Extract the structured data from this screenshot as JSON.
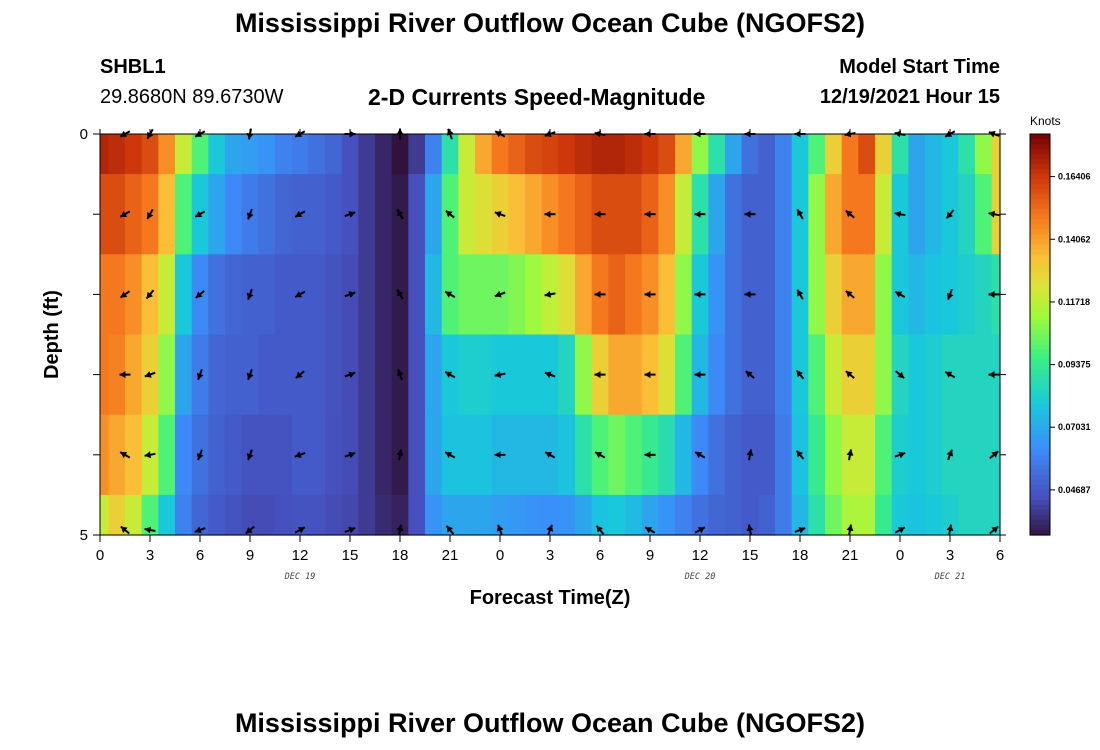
{
  "page": {
    "title": "Mississippi River Outflow Ocean Cube (NGOFS2)",
    "title_repeat": "Mississippi River Outflow Ocean Cube (NGOFS2)",
    "station_id": "SHBL1",
    "station_coords": "29.8680N  89.6730W",
    "subtitle": "2-D Currents Speed-Magnitude",
    "model_start_label": "Model Start Time",
    "model_start_value": "12/19/2021 Hour 15"
  },
  "chart_data": {
    "type": "heatmap",
    "title": "2-D Currents Speed-Magnitude",
    "xlabel": "Forecast Time(Z)",
    "ylabel": "Depth (ft)",
    "x_range_hours": [
      0,
      54
    ],
    "x_tick_hours": [
      0,
      3,
      6,
      9,
      12,
      15,
      18,
      21,
      24,
      27,
      30,
      33,
      36,
      39,
      42,
      45,
      48,
      51,
      54
    ],
    "x_tick_labels": [
      "0",
      "3",
      "6",
      "9",
      "12",
      "15",
      "18",
      "21",
      "0",
      "3",
      "6",
      "9",
      "12",
      "15",
      "18",
      "21",
      "0",
      "3",
      "6"
    ],
    "date_labels": [
      {
        "text": "DEC 19",
        "hour": 12
      },
      {
        "text": "DEC 20",
        "hour": 36
      },
      {
        "text": "DEC 21",
        "hour": 51
      }
    ],
    "y_range_ft": [
      0,
      5
    ],
    "y_tick_labels": [
      {
        "value": 0,
        "label": "0"
      },
      {
        "value": 5,
        "label": "5"
      }
    ],
    "colorbar": {
      "unit": "Knots",
      "min": 0.03,
      "max": 0.18,
      "tick_values": [
        0.16406,
        0.14062,
        0.11718,
        0.09375,
        0.07031,
        0.04687
      ],
      "tick_labels": [
        "0.16406",
        "0.14062",
        "0.11718",
        "0.09375",
        "0.07031",
        "0.04687"
      ]
    },
    "layer_depths_ft": [
      0.25,
      1.0,
      2.0,
      3.0,
      4.0,
      4.75
    ],
    "column_hours": [
      0,
      1,
      2,
      3,
      4,
      5,
      6,
      7,
      8,
      9,
      10,
      11,
      12,
      13,
      14,
      15,
      16,
      17,
      18,
      19,
      20,
      21,
      22,
      23,
      24,
      25,
      26,
      27,
      28,
      29,
      30,
      31,
      32,
      33,
      34,
      35,
      36,
      37,
      38,
      39,
      40,
      41,
      42,
      43,
      44,
      45,
      46,
      47,
      48,
      49,
      50,
      51,
      52,
      53,
      54
    ],
    "speed_knots": [
      [
        0.17,
        0.168,
        0.165,
        0.16,
        0.145,
        0.12,
        0.1,
        0.08,
        0.07,
        0.068,
        0.065,
        0.06,
        0.058,
        0.055,
        0.052,
        0.045,
        0.04,
        0.035,
        0.03,
        0.04,
        0.06,
        0.09,
        0.12,
        0.14,
        0.15,
        0.155,
        0.16,
        0.162,
        0.165,
        0.168,
        0.17,
        0.17,
        0.168,
        0.165,
        0.16,
        0.14,
        0.11,
        0.09,
        0.07,
        0.055,
        0.05,
        0.06,
        0.08,
        0.1,
        0.13,
        0.15,
        0.16,
        0.13,
        0.09,
        0.07,
        0.075,
        0.08,
        0.09,
        0.11,
        0.13
      ],
      [
        0.16,
        0.16,
        0.155,
        0.15,
        0.135,
        0.1,
        0.08,
        0.07,
        0.062,
        0.058,
        0.055,
        0.052,
        0.05,
        0.05,
        0.048,
        0.045,
        0.04,
        0.035,
        0.032,
        0.045,
        0.07,
        0.1,
        0.12,
        0.125,
        0.13,
        0.135,
        0.14,
        0.145,
        0.15,
        0.155,
        0.16,
        0.16,
        0.16,
        0.155,
        0.145,
        0.12,
        0.09,
        0.07,
        0.055,
        0.05,
        0.05,
        0.06,
        0.08,
        0.11,
        0.14,
        0.15,
        0.15,
        0.12,
        0.08,
        0.07,
        0.075,
        0.08,
        0.085,
        0.1,
        0.13
      ],
      [
        0.15,
        0.15,
        0.145,
        0.135,
        0.12,
        0.08,
        0.062,
        0.055,
        0.052,
        0.05,
        0.05,
        0.048,
        0.048,
        0.048,
        0.046,
        0.044,
        0.04,
        0.035,
        0.032,
        0.045,
        0.075,
        0.1,
        0.105,
        0.105,
        0.105,
        0.108,
        0.112,
        0.118,
        0.125,
        0.14,
        0.15,
        0.155,
        0.15,
        0.145,
        0.135,
        0.11,
        0.08,
        0.065,
        0.055,
        0.05,
        0.05,
        0.06,
        0.08,
        0.11,
        0.13,
        0.14,
        0.14,
        0.11,
        0.08,
        0.075,
        0.078,
        0.08,
        0.082,
        0.085,
        0.09
      ],
      [
        0.15,
        0.148,
        0.14,
        0.13,
        0.11,
        0.07,
        0.058,
        0.052,
        0.05,
        0.05,
        0.048,
        0.048,
        0.048,
        0.048,
        0.046,
        0.044,
        0.04,
        0.035,
        0.032,
        0.045,
        0.07,
        0.08,
        0.082,
        0.082,
        0.08,
        0.08,
        0.08,
        0.08,
        0.085,
        0.11,
        0.13,
        0.14,
        0.14,
        0.135,
        0.125,
        0.1,
        0.075,
        0.062,
        0.055,
        0.05,
        0.05,
        0.06,
        0.08,
        0.1,
        0.12,
        0.13,
        0.13,
        0.11,
        0.085,
        0.08,
        0.082,
        0.085,
        0.085,
        0.085,
        0.085
      ],
      [
        0.145,
        0.14,
        0.135,
        0.12,
        0.1,
        0.062,
        0.055,
        0.05,
        0.048,
        0.046,
        0.046,
        0.046,
        0.048,
        0.048,
        0.045,
        0.044,
        0.04,
        0.035,
        0.032,
        0.045,
        0.07,
        0.078,
        0.078,
        0.078,
        0.075,
        0.075,
        0.075,
        0.075,
        0.078,
        0.09,
        0.1,
        0.105,
        0.1,
        0.095,
        0.088,
        0.075,
        0.062,
        0.055,
        0.05,
        0.048,
        0.048,
        0.058,
        0.078,
        0.095,
        0.11,
        0.12,
        0.12,
        0.1,
        0.082,
        0.08,
        0.082,
        0.085,
        0.085,
        0.085,
        0.085
      ],
      [
        0.12,
        0.13,
        0.12,
        0.1,
        0.08,
        0.06,
        0.052,
        0.048,
        0.046,
        0.044,
        0.044,
        0.045,
        0.046,
        0.046,
        0.044,
        0.043,
        0.04,
        0.036,
        0.034,
        0.045,
        0.065,
        0.07,
        0.07,
        0.07,
        0.068,
        0.066,
        0.065,
        0.064,
        0.065,
        0.07,
        0.078,
        0.08,
        0.076,
        0.07,
        0.065,
        0.06,
        0.055,
        0.052,
        0.05,
        0.048,
        0.05,
        0.058,
        0.075,
        0.09,
        0.105,
        0.115,
        0.115,
        0.095,
        0.08,
        0.078,
        0.08,
        0.082,
        0.085,
        0.085,
        0.085
      ]
    ],
    "vector_hours": [
      1.5,
      3,
      6,
      9,
      12,
      15,
      18,
      21,
      24,
      27,
      30,
      33,
      36,
      39,
      42,
      45,
      48,
      51,
      54
    ],
    "vector_rows": [
      {
        "depth_ft": 0.0,
        "angles_deg": [
          210,
          240,
          210,
          260,
          210,
          0,
          90,
          110,
          150,
          200,
          170,
          180,
          180,
          180,
          180,
          190,
          170,
          210,
          160
        ]
      },
      {
        "depth_ft": 1.0,
        "angles_deg": [
          210,
          240,
          210,
          250,
          210,
          20,
          120,
          140,
          160,
          180,
          180,
          180,
          180,
          180,
          120,
          140,
          170,
          230,
          170
        ]
      },
      {
        "depth_ft": 2.0,
        "angles_deg": [
          215,
          230,
          220,
          250,
          210,
          20,
          120,
          150,
          200,
          190,
          180,
          180,
          180,
          180,
          120,
          140,
          150,
          250,
          180
        ]
      },
      {
        "depth_ft": 3.0,
        "angles_deg": [
          180,
          200,
          250,
          250,
          220,
          20,
          110,
          150,
          190,
          160,
          180,
          180,
          180,
          140,
          130,
          140,
          320,
          150,
          180
        ]
      },
      {
        "depth_ft": 4.0,
        "angles_deg": [
          150,
          190,
          250,
          250,
          200,
          20,
          80,
          150,
          180,
          150,
          150,
          180,
          150,
          80,
          130,
          80,
          20,
          70,
          40
        ]
      },
      {
        "depth_ft": 5.0,
        "angles_deg": [
          140,
          170,
          200,
          220,
          30,
          20,
          80,
          130,
          110,
          70,
          130,
          150,
          30,
          100,
          20,
          80,
          30,
          80,
          40
        ]
      }
    ]
  }
}
